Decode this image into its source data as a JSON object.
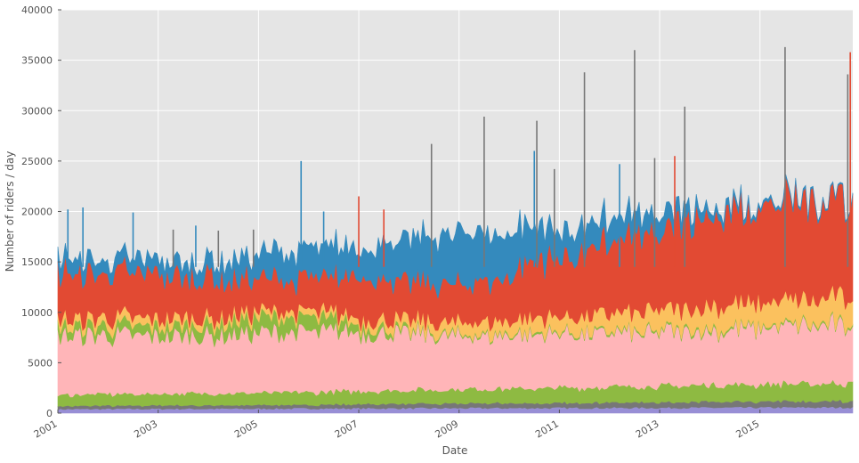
{
  "chart_data": {
    "type": "area",
    "stacked": true,
    "xlabel": "Date",
    "ylabel": "Number of riders / day",
    "xlim": [
      2001,
      2016.85
    ],
    "ylim": [
      0,
      40000
    ],
    "x_ticks": [
      2001,
      2003,
      2005,
      2007,
      2009,
      2011,
      2013,
      2015
    ],
    "x_tick_labels": [
      "2001",
      "2003",
      "2005",
      "2007",
      "2009",
      "2011",
      "2013",
      "2015"
    ],
    "y_ticks": [
      0,
      5000,
      10000,
      15000,
      20000,
      25000,
      30000,
      35000,
      40000
    ],
    "y_tick_labels": [
      "0",
      "5000",
      "10000",
      "15000",
      "20000",
      "25000",
      "30000",
      "35000",
      "40000"
    ],
    "grid": true,
    "background": "#E5E5E5",
    "x": [
      2001.0,
      2002.0,
      2003.0,
      2004.0,
      2005.0,
      2006.0,
      2007.0,
      2008.0,
      2009.0,
      2010.0,
      2011.0,
      2012.0,
      2013.0,
      2014.0,
      2015.0,
      2016.0,
      2016.85
    ],
    "series": [
      {
        "color": "#988ED5",
        "values": [
          400,
          420,
          430,
          440,
          450,
          470,
          480,
          490,
          500,
          510,
          520,
          530,
          540,
          550,
          560,
          570,
          580
        ]
      },
      {
        "color": "#777777",
        "values": [
          300,
          320,
          330,
          340,
          350,
          380,
          400,
          420,
          450,
          480,
          500,
          520,
          540,
          560,
          580,
          600,
          620
        ]
      },
      {
        "color": "#8EBA42",
        "values": [
          1100,
          1150,
          1150,
          1200,
          1200,
          1250,
          1300,
          1350,
          1400,
          1450,
          1500,
          1550,
          1600,
          1650,
          1700,
          1750,
          1800
        ]
      },
      {
        "color": "#FFB5B8",
        "values": [
          5900,
          5800,
          5700,
          5800,
          5900,
          5900,
          5900,
          5600,
          5300,
          5300,
          5400,
          5300,
          5300,
          5400,
          5600,
          5700,
          5800
        ]
      },
      {
        "color": "#8EBA42",
        "values": [
          900,
          900,
          950,
          1100,
          1500,
          1400,
          800,
          300,
          200,
          200,
          200,
          200,
          200,
          250,
          200,
          200,
          200
        ]
      },
      {
        "color": "#FBC15E",
        "values": [
          700,
          800,
          800,
          600,
          600,
          600,
          600,
          1000,
          1100,
          1300,
          1500,
          1700,
          1900,
          2100,
          2300,
          2400,
          2600
        ]
      },
      {
        "color": "#E24A33",
        "values": [
          4700,
          4300,
          4400,
          4200,
          3200,
          3300,
          4300,
          3800,
          3600,
          4500,
          6100,
          7100,
          8200,
          9000,
          9600,
          9800,
          9900
        ]
      },
      {
        "color": "#348ABD",
        "values": [
          1500,
          1300,
          1400,
          1400,
          2300,
          2900,
          2700,
          4000,
          5000,
          4200,
          2800,
          2300,
          1800,
          800,
          300,
          200,
          100
        ]
      }
    ],
    "spikes": [
      {
        "x": 2001.2,
        "value": 20200,
        "color": "#348ABD"
      },
      {
        "x": 2001.5,
        "value": 20400,
        "color": "#348ABD"
      },
      {
        "x": 2002.5,
        "value": 19900,
        "color": "#348ABD"
      },
      {
        "x": 2003.3,
        "value": 18200,
        "color": "#777777"
      },
      {
        "x": 2003.75,
        "value": 18600,
        "color": "#348ABD"
      },
      {
        "x": 2004.2,
        "value": 18100,
        "color": "#777777"
      },
      {
        "x": 2004.9,
        "value": 18200,
        "color": "#777777"
      },
      {
        "x": 2005.85,
        "value": 25000,
        "color": "#348ABD"
      },
      {
        "x": 2006.3,
        "value": 20000,
        "color": "#348ABD"
      },
      {
        "x": 2007.0,
        "value": 21500,
        "color": "#E24A33"
      },
      {
        "x": 2007.5,
        "value": 20200,
        "color": "#E24A33"
      },
      {
        "x": 2008.45,
        "value": 26700,
        "color": "#777777"
      },
      {
        "x": 2009.5,
        "value": 29400,
        "color": "#777777"
      },
      {
        "x": 2010.5,
        "value": 26000,
        "color": "#348ABD"
      },
      {
        "x": 2010.55,
        "value": 29000,
        "color": "#777777"
      },
      {
        "x": 2010.9,
        "value": 24200,
        "color": "#777777"
      },
      {
        "x": 2011.5,
        "value": 33800,
        "color": "#777777"
      },
      {
        "x": 2012.2,
        "value": 24700,
        "color": "#348ABD"
      },
      {
        "x": 2012.5,
        "value": 36000,
        "color": "#777777"
      },
      {
        "x": 2012.9,
        "value": 25300,
        "color": "#777777"
      },
      {
        "x": 2013.3,
        "value": 25500,
        "color": "#E24A33"
      },
      {
        "x": 2013.5,
        "value": 30400,
        "color": "#777777"
      },
      {
        "x": 2015.5,
        "value": 36300,
        "color": "#777777"
      },
      {
        "x": 2016.8,
        "value": 35800,
        "color": "#E24A33"
      },
      {
        "x": 2016.75,
        "value": 33600,
        "color": "#777777"
      }
    ]
  }
}
